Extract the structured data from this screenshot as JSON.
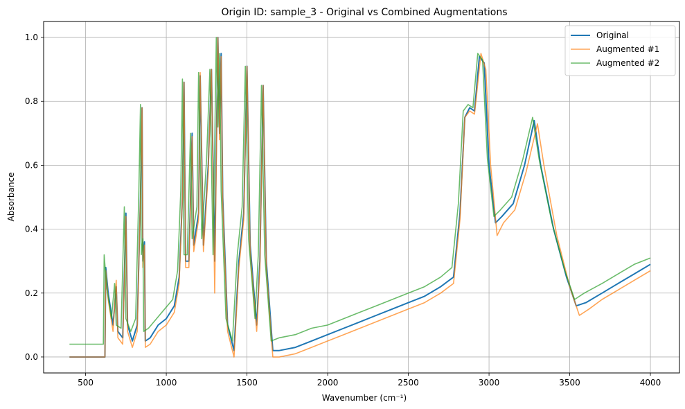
{
  "chart_data": {
    "type": "line",
    "title": "Origin ID: sample_3 - Original vs Combined Augmentations",
    "xlabel": "Wavenumber (cm⁻¹)",
    "ylabel": "Absorbance",
    "xlim": [
      240,
      4180
    ],
    "ylim": [
      -0.05,
      1.05
    ],
    "xticks": [
      500,
      1000,
      1500,
      2000,
      2500,
      3000,
      3500,
      4000
    ],
    "xtick_labels": [
      "500",
      "1000",
      "1500",
      "2000",
      "2500",
      "3000",
      "3500",
      "4000"
    ],
    "yticks": [
      0.0,
      0.2,
      0.4,
      0.6,
      0.8,
      1.0
    ],
    "ytick_labels": [
      "0.0",
      "0.2",
      "0.4",
      "0.6",
      "0.8",
      "1.0"
    ],
    "grid": true,
    "legend_position": "top-right",
    "series": [
      {
        "name": "Original",
        "color": "#1f77b4",
        "points": [
          [
            400,
            0.0
          ],
          [
            620,
            0.0
          ],
          [
            625,
            0.28
          ],
          [
            640,
            0.2
          ],
          [
            670,
            0.1
          ],
          [
            690,
            0.22
          ],
          [
            700,
            0.08
          ],
          [
            730,
            0.06
          ],
          [
            750,
            0.45
          ],
          [
            760,
            0.1
          ],
          [
            790,
            0.05
          ],
          [
            820,
            0.1
          ],
          [
            840,
            0.5
          ],
          [
            850,
            0.78
          ],
          [
            855,
            0.3
          ],
          [
            865,
            0.36
          ],
          [
            870,
            0.05
          ],
          [
            900,
            0.06
          ],
          [
            950,
            0.1
          ],
          [
            1000,
            0.12
          ],
          [
            1050,
            0.16
          ],
          [
            1080,
            0.25
          ],
          [
            1100,
            0.5
          ],
          [
            1110,
            0.86
          ],
          [
            1120,
            0.3
          ],
          [
            1140,
            0.3
          ],
          [
            1160,
            0.7
          ],
          [
            1170,
            0.35
          ],
          [
            1200,
            0.45
          ],
          [
            1210,
            0.88
          ],
          [
            1230,
            0.35
          ],
          [
            1260,
            0.6
          ],
          [
            1280,
            0.9
          ],
          [
            1300,
            0.3
          ],
          [
            1320,
            1.0
          ],
          [
            1330,
            0.7
          ],
          [
            1340,
            0.95
          ],
          [
            1350,
            0.5
          ],
          [
            1380,
            0.1
          ],
          [
            1420,
            0.02
          ],
          [
            1450,
            0.3
          ],
          [
            1480,
            0.45
          ],
          [
            1500,
            0.91
          ],
          [
            1520,
            0.35
          ],
          [
            1560,
            0.1
          ],
          [
            1580,
            0.3
          ],
          [
            1600,
            0.85
          ],
          [
            1620,
            0.3
          ],
          [
            1660,
            0.02
          ],
          [
            1700,
            0.02
          ],
          [
            1800,
            0.03
          ],
          [
            1900,
            0.05
          ],
          [
            2000,
            0.07
          ],
          [
            2100,
            0.09
          ],
          [
            2200,
            0.11
          ],
          [
            2300,
            0.13
          ],
          [
            2400,
            0.15
          ],
          [
            2500,
            0.17
          ],
          [
            2600,
            0.19
          ],
          [
            2700,
            0.22
          ],
          [
            2780,
            0.25
          ],
          [
            2820,
            0.45
          ],
          [
            2850,
            0.75
          ],
          [
            2880,
            0.78
          ],
          [
            2910,
            0.77
          ],
          [
            2940,
            0.94
          ],
          [
            2970,
            0.92
          ],
          [
            3000,
            0.6
          ],
          [
            3040,
            0.42
          ],
          [
            3080,
            0.44
          ],
          [
            3150,
            0.48
          ],
          [
            3220,
            0.6
          ],
          [
            3280,
            0.74
          ],
          [
            3320,
            0.6
          ],
          [
            3400,
            0.4
          ],
          [
            3480,
            0.25
          ],
          [
            3540,
            0.16
          ],
          [
            3600,
            0.17
          ],
          [
            3700,
            0.2
          ],
          [
            3800,
            0.23
          ],
          [
            3900,
            0.26
          ],
          [
            4000,
            0.29
          ]
        ]
      },
      {
        "name": "Augmented #1",
        "color": "#ff7f0e",
        "points": [
          [
            400,
            0.0
          ],
          [
            620,
            0.0
          ],
          [
            625,
            0.27
          ],
          [
            640,
            0.18
          ],
          [
            670,
            0.08
          ],
          [
            690,
            0.24
          ],
          [
            700,
            0.06
          ],
          [
            730,
            0.04
          ],
          [
            750,
            0.44
          ],
          [
            760,
            0.08
          ],
          [
            790,
            0.03
          ],
          [
            820,
            0.08
          ],
          [
            840,
            0.5
          ],
          [
            850,
            0.78
          ],
          [
            855,
            0.28
          ],
          [
            865,
            0.35
          ],
          [
            870,
            0.03
          ],
          [
            900,
            0.04
          ],
          [
            950,
            0.08
          ],
          [
            1000,
            0.1
          ],
          [
            1050,
            0.14
          ],
          [
            1080,
            0.23
          ],
          [
            1100,
            0.5
          ],
          [
            1110,
            0.86
          ],
          [
            1120,
            0.28
          ],
          [
            1140,
            0.28
          ],
          [
            1160,
            0.69
          ],
          [
            1170,
            0.33
          ],
          [
            1200,
            0.43
          ],
          [
            1210,
            0.89
          ],
          [
            1230,
            0.33
          ],
          [
            1260,
            0.58
          ],
          [
            1280,
            0.9
          ],
          [
            1300,
            0.2
          ],
          [
            1320,
            1.0
          ],
          [
            1330,
            0.68
          ],
          [
            1340,
            0.94
          ],
          [
            1350,
            0.48
          ],
          [
            1380,
            0.08
          ],
          [
            1420,
            0.0
          ],
          [
            1450,
            0.28
          ],
          [
            1480,
            0.43
          ],
          [
            1500,
            0.91
          ],
          [
            1520,
            0.33
          ],
          [
            1560,
            0.08
          ],
          [
            1580,
            0.28
          ],
          [
            1600,
            0.85
          ],
          [
            1620,
            0.28
          ],
          [
            1660,
            0.0
          ],
          [
            1700,
            0.0
          ],
          [
            1800,
            0.01
          ],
          [
            1900,
            0.03
          ],
          [
            2000,
            0.05
          ],
          [
            2100,
            0.07
          ],
          [
            2200,
            0.09
          ],
          [
            2300,
            0.11
          ],
          [
            2400,
            0.13
          ],
          [
            2500,
            0.15
          ],
          [
            2600,
            0.17
          ],
          [
            2700,
            0.2
          ],
          [
            2780,
            0.23
          ],
          [
            2820,
            0.43
          ],
          [
            2850,
            0.75
          ],
          [
            2880,
            0.77
          ],
          [
            2910,
            0.76
          ],
          [
            2950,
            0.95
          ],
          [
            2980,
            0.9
          ],
          [
            3010,
            0.6
          ],
          [
            3050,
            0.38
          ],
          [
            3090,
            0.42
          ],
          [
            3160,
            0.46
          ],
          [
            3230,
            0.58
          ],
          [
            3300,
            0.73
          ],
          [
            3340,
            0.6
          ],
          [
            3420,
            0.38
          ],
          [
            3500,
            0.22
          ],
          [
            3560,
            0.13
          ],
          [
            3620,
            0.15
          ],
          [
            3700,
            0.18
          ],
          [
            3800,
            0.21
          ],
          [
            3900,
            0.24
          ],
          [
            4000,
            0.27
          ]
        ]
      },
      {
        "name": "Augmented #2",
        "color": "#2ca02c",
        "points": [
          [
            400,
            0.04
          ],
          [
            610,
            0.04
          ],
          [
            615,
            0.32
          ],
          [
            630,
            0.22
          ],
          [
            660,
            0.12
          ],
          [
            680,
            0.23
          ],
          [
            690,
            0.1
          ],
          [
            720,
            0.09
          ],
          [
            740,
            0.47
          ],
          [
            750,
            0.12
          ],
          [
            780,
            0.08
          ],
          [
            810,
            0.12
          ],
          [
            830,
            0.52
          ],
          [
            840,
            0.79
          ],
          [
            845,
            0.32
          ],
          [
            855,
            0.37
          ],
          [
            860,
            0.08
          ],
          [
            890,
            0.09
          ],
          [
            940,
            0.12
          ],
          [
            990,
            0.15
          ],
          [
            1040,
            0.18
          ],
          [
            1070,
            0.27
          ],
          [
            1090,
            0.52
          ],
          [
            1100,
            0.87
          ],
          [
            1110,
            0.32
          ],
          [
            1130,
            0.32
          ],
          [
            1150,
            0.7
          ],
          [
            1160,
            0.37
          ],
          [
            1190,
            0.47
          ],
          [
            1200,
            0.89
          ],
          [
            1220,
            0.37
          ],
          [
            1250,
            0.62
          ],
          [
            1270,
            0.9
          ],
          [
            1290,
            0.32
          ],
          [
            1310,
            1.0
          ],
          [
            1320,
            0.72
          ],
          [
            1330,
            0.95
          ],
          [
            1340,
            0.52
          ],
          [
            1370,
            0.12
          ],
          [
            1410,
            0.05
          ],
          [
            1440,
            0.32
          ],
          [
            1470,
            0.47
          ],
          [
            1490,
            0.91
          ],
          [
            1510,
            0.37
          ],
          [
            1550,
            0.12
          ],
          [
            1570,
            0.32
          ],
          [
            1590,
            0.85
          ],
          [
            1610,
            0.32
          ],
          [
            1650,
            0.05
          ],
          [
            1700,
            0.06
          ],
          [
            1800,
            0.07
          ],
          [
            1900,
            0.09
          ],
          [
            2000,
            0.1
          ],
          [
            2100,
            0.12
          ],
          [
            2200,
            0.14
          ],
          [
            2300,
            0.16
          ],
          [
            2400,
            0.18
          ],
          [
            2500,
            0.2
          ],
          [
            2600,
            0.22
          ],
          [
            2700,
            0.25
          ],
          [
            2770,
            0.28
          ],
          [
            2810,
            0.48
          ],
          [
            2840,
            0.77
          ],
          [
            2870,
            0.79
          ],
          [
            2900,
            0.78
          ],
          [
            2930,
            0.95
          ],
          [
            2960,
            0.93
          ],
          [
            2990,
            0.62
          ],
          [
            3030,
            0.44
          ],
          [
            3070,
            0.46
          ],
          [
            3140,
            0.5
          ],
          [
            3210,
            0.62
          ],
          [
            3270,
            0.75
          ],
          [
            3310,
            0.62
          ],
          [
            3390,
            0.42
          ],
          [
            3470,
            0.27
          ],
          [
            3530,
            0.18
          ],
          [
            3590,
            0.2
          ],
          [
            3700,
            0.23
          ],
          [
            3800,
            0.26
          ],
          [
            3900,
            0.29
          ],
          [
            4000,
            0.31
          ]
        ]
      }
    ]
  }
}
